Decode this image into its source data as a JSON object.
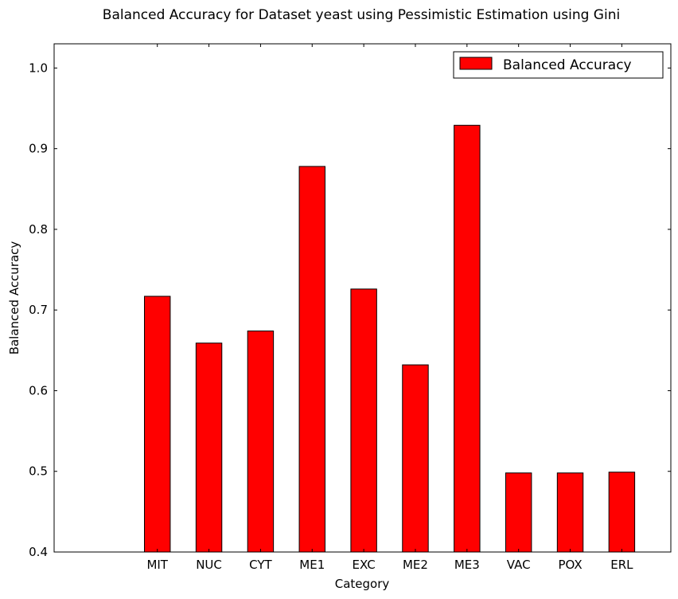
{
  "chart_data": {
    "type": "bar",
    "title": "Balanced Accuracy for Dataset yeast using Pessimistic Estimation using Gini",
    "xlabel": "Category",
    "ylabel": "Balanced Accuracy",
    "categories": [
      "MIT",
      "NUC",
      "CYT",
      "ME1",
      "EXC",
      "ME2",
      "ME3",
      "VAC",
      "POX",
      "ERL"
    ],
    "series": [
      {
        "name": "Balanced Accuracy",
        "color": "#ff0000",
        "values": [
          0.717,
          0.659,
          0.674,
          0.878,
          0.726,
          0.632,
          0.929,
          0.498,
          0.498,
          0.499
        ]
      }
    ],
    "ylim": [
      0.4,
      1.03
    ],
    "yticks": [
      0.4,
      0.5,
      0.6,
      0.7,
      0.8,
      0.9,
      1.0
    ],
    "ytick_labels": [
      "0.4",
      "0.5",
      "0.6",
      "0.7",
      "0.8",
      "0.9",
      "1.0"
    ],
    "grid": false,
    "legend_position": "top-right"
  }
}
